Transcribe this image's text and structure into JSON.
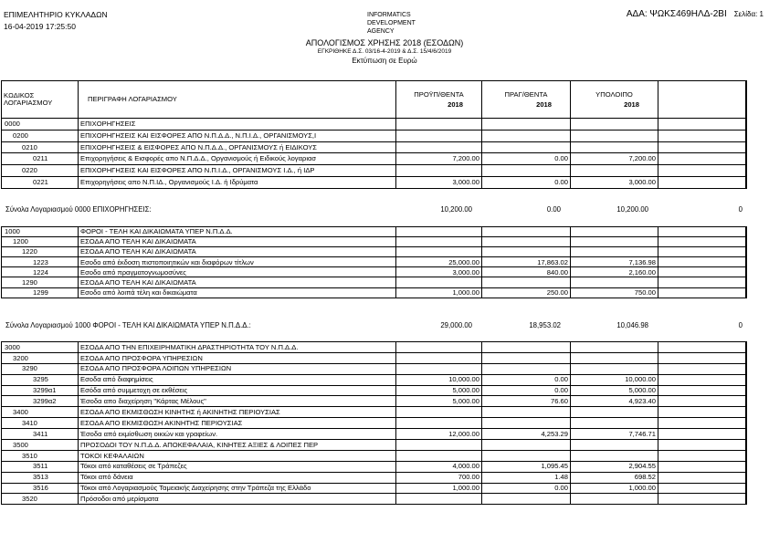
{
  "header": {
    "org": "ΕΠΙΜΕΛΗΤΗΡΙΟ ΚΥΚΛΑΔΩΝ",
    "datetime": "16-04-2019 17:25:50",
    "ada": "ΑΔΑ: ΨΩΚΣ469ΗΛΔ-2ΒΙ",
    "page": "Σελίδα: 1",
    "logo_text": "INFORMATICS DEVELOPMENT AGENCY",
    "title": "ΑΠΟΛΟΓΙΣΜΟΣ ΧΡΗΣΗΣ 2018 (ΕΣΟΔΩΝ)",
    "approval": "ΕΓΚΡΙΘΗΚΕ Δ.Σ. 03/16-4-2019 & Δ.Σ. 15/4/6/2019",
    "currency": "Εκτύπωση σε Ευρώ"
  },
  "columns": {
    "code": "ΚΩΔΙΚΟΣ ΛΟΓΑΡΙΑΣΜΟΥ",
    "desc": "ΠΕΡΙΓΡΑΦΗ ΛΟΓΑΡΙΑΣΜΟΥ",
    "budget": "ΠΡΟΫΠ/ΘΕΝΤΑ",
    "realized": "ΠΡΑΓ/ΘΕΝΤΑ",
    "remaining": "ΥΠΟΛΟΙΠΟ",
    "year": "2018"
  },
  "sections": [
    {
      "rows": [
        {
          "code": "0000",
          "level": 0,
          "desc": "ΕΠΙΧΟΡΗΓΗΣΕΙΣ",
          "b": "",
          "r": "",
          "rem": ""
        },
        {
          "code": "0200",
          "level": 1,
          "desc": "ΕΠΙΧΟΡΗΓΗΣΕΙΣ ΚΑΙ ΕΙΣΦΟΡΕΣ ΑΠΟ Ν.Π.Δ.Δ., Ν.Π.Ι.Δ., ΟΡΓΑΝΙΣΜΟΥΣ,Ι",
          "b": "",
          "r": "",
          "rem": ""
        },
        {
          "code": "0210",
          "level": 2,
          "desc": "ΕΠΙΧΟΡΗΓΗΣΕΙΣ & ΕΙΣΦΟΡΕΣ ΑΠΟ Ν.Π.Δ.Δ., ΟΡΓΑΝΙΣΜΟΥΣ ή ΕΙΔΙΚΟΥΣ",
          "b": "",
          "r": "",
          "rem": ""
        },
        {
          "code": "0211",
          "level": 3,
          "desc": "Επιχορηγήσεις & Εισφορές απο Ν.Π.Δ.Δ., Οργανισμούς ή Ειδικούς λογαριασ",
          "b": "7,200.00",
          "r": "0.00",
          "rem": "7,200.00"
        },
        {
          "code": "0220",
          "level": 2,
          "desc": "ΕΠΙΧΟΡΗΓΗΣΕΙΣ ΚΑΙ ΕΙΣΦΟΡΕΣ ΑΠΟ  Ν.Π.Ι.Δ., ΟΡΓΑΝΙΣΜΟΥΣ Ι.Δ., ή ΙΔΡ",
          "b": "",
          "r": "",
          "rem": ""
        },
        {
          "code": "0221",
          "level": 3,
          "desc": "Επιχορηγήσεις απο Ν.Π.ΙΔ., Οργανισμούς Ι.Δ. ή Ιδρύματα",
          "b": "3,000.00",
          "r": "0.00",
          "rem": "3,000.00"
        }
      ],
      "total": {
        "label": "Σύνολα  Λογαριασμού  0000 ΕΠΙΧΟΡΗΓΗΣΕΙΣ:",
        "b": "10,200.00",
        "r": "0.00",
        "rem": "10,200.00",
        "extra": "0"
      }
    },
    {
      "rows": [
        {
          "code": "1000",
          "level": 0,
          "desc": "ΦΟΡΟΙ - ΤΕΛΗ ΚΑΙ ΔΙΚΑΙΩΜΑΤΑ ΥΠΕΡ Ν.Π.Δ.Δ.",
          "b": "",
          "r": "",
          "rem": ""
        },
        {
          "code": "1200",
          "level": 1,
          "desc": "ΕΣΟΔΑ ΑΠΟ ΤΕΛΗ ΚΑΙ ΔΙΚΑΙΩΜΑΤΑ",
          "b": "",
          "r": "",
          "rem": ""
        },
        {
          "code": "1220",
          "level": 2,
          "desc": "ΕΣΟΔΑ ΑΠΟ ΤΕΛΗ ΚΑΙ ΔΙΚΑΙΩΜΑΤΑ",
          "b": "",
          "r": "",
          "rem": ""
        },
        {
          "code": "1223",
          "level": 3,
          "desc": "Εσοδο από έκδοση πιστοποιητικών και διαφόρων τίτλων",
          "b": "25,000.00",
          "r": "17,863.02",
          "rem": "7,136.98"
        },
        {
          "code": "1224",
          "level": 3,
          "desc": "Εσοδο από πραγματογνωμοσύνες",
          "b": "3,000.00",
          "r": "840.00",
          "rem": "2,160.00"
        },
        {
          "code": "1290",
          "level": 2,
          "desc": "ΕΣΟΔΑ ΑΠΟ ΤΕΛΗ ΚΑΙ ΔΙΚΑΙΩΜΑΤΑ",
          "b": "",
          "r": "",
          "rem": ""
        },
        {
          "code": "1299",
          "level": 3,
          "desc": "Εσοδο από λοιπά τέλη και δικαιώματα",
          "b": "1,000.00",
          "r": "250.00",
          "rem": "750.00"
        }
      ],
      "total": {
        "label": "Σύνολα  Λογαριασμού  1000 ΦΟΡΟΙ - ΤΕΛΗ ΚΑΙ ΔΙΚΑΙΩΜΑΤΑ ΥΠΕΡ Ν.Π.Δ.Δ.:",
        "b": "29,000.00",
        "r": "18,953.02",
        "rem": "10,046.98",
        "extra": "0"
      }
    },
    {
      "rows": [
        {
          "code": "3000",
          "level": 0,
          "desc": "ΕΣΟΔΑ ΑΠΟ ΤΗΝ ΕΠΙΧΕΙΡΗΜΑΤΙΚΗ ΔΡΑΣΤΗΡΙΟΤΗΤΑ ΤΟΥ Ν.Π.Δ.Δ.",
          "b": "",
          "r": "",
          "rem": ""
        },
        {
          "code": "3200",
          "level": 1,
          "desc": "ΕΣΟΔΑ  ΑΠΟ ΠΡΟΣΦΟΡΑ ΥΠΗΡΕΣΙΩΝ",
          "b": "",
          "r": "",
          "rem": ""
        },
        {
          "code": "3290",
          "level": 2,
          "desc": "ΕΣΟΔΑ ΑΠΟ ΠΡΟΣΦΟΡΑ ΛΟΙΠΩΝ ΥΠΗΡΕΣΙΩΝ",
          "b": "",
          "r": "",
          "rem": ""
        },
        {
          "code": "3295",
          "level": 3,
          "desc": "Εσοδα από διαφημίσεις",
          "b": "10,000.00",
          "r": "0.00",
          "rem": "10,000.00"
        },
        {
          "code": "3299α1",
          "level": 3,
          "desc": "Εσόδα από συμμετοχη σε εκθέσεις",
          "b": "5,000.00",
          "r": "0.00",
          "rem": "5,000.00"
        },
        {
          "code": "3299α2",
          "level": 3,
          "desc": "Έσοδα απο διαχείρηση \"Κάρτας Μέλους\"",
          "b": "5,000.00",
          "r": "76.60",
          "rem": "4,923.40"
        },
        {
          "code": "3400",
          "level": 1,
          "desc": "ΕΣΟΔΑ ΑΠΟ ΕΚΜΙΣΘΩΣΗ ΚΙΝΗΤΗΣ ή ΑΚΙΝΗΤΗΣ ΠΕΡΙΟΥΣΙΑΣ",
          "b": "",
          "r": "",
          "rem": ""
        },
        {
          "code": "3410",
          "level": 2,
          "desc": "ΕΣΟΔΑ ΑΠΟ ΕΚΜΙΣΘΩΣΗ ΑΚΙΝΗΤΗΣ ΠΕΡΙΟΥΣΙΑΣ",
          "b": "",
          "r": "",
          "rem": ""
        },
        {
          "code": "3411",
          "level": 3,
          "desc": "Έσοδα από εκμίσθωση οικιών και γραφείων.",
          "b": "12,000.00",
          "r": "4,253.29",
          "rem": "7,746.71"
        },
        {
          "code": "3500",
          "level": 1,
          "desc": "ΠΡΟΣΟΔΟΙ ΤΟΥ Ν.Π.Δ.Δ. ΑΠΟΚΕΦΑΛΑΙΑ, ΚΙΝΗΤΕΣ ΑΞΙΕΣ & ΛΟΙΠΕΣ ΠΕΡ",
          "b": "",
          "r": "",
          "rem": ""
        },
        {
          "code": "3510",
          "level": 2,
          "desc": "ΤΟΚΟΙ ΚΕΦΑΛΑΙΩΝ",
          "b": "",
          "r": "",
          "rem": ""
        },
        {
          "code": "3511",
          "level": 3,
          "desc": "Τόκοι από καταθέσεις σε Τράπεζες",
          "b": "4,000.00",
          "r": "1,095.45",
          "rem": "2,904.55"
        },
        {
          "code": "3513",
          "level": 3,
          "desc": "Τόκοι από δάνεια",
          "b": "700.00",
          "r": "1.48",
          "rem": "698.52"
        },
        {
          "code": "3516",
          "level": 3,
          "desc": "Τόκοι από Λογαριασμούς Ταμειακής Διαχείρησης στην Τράπεζα της Ελλάδο",
          "b": "1,000.00",
          "r": "0.00",
          "rem": "1,000.00"
        },
        {
          "code": "3520",
          "level": 2,
          "desc": "Πρόσοδοι από μερίσματα",
          "b": "",
          "r": "",
          "rem": ""
        }
      ]
    }
  ]
}
